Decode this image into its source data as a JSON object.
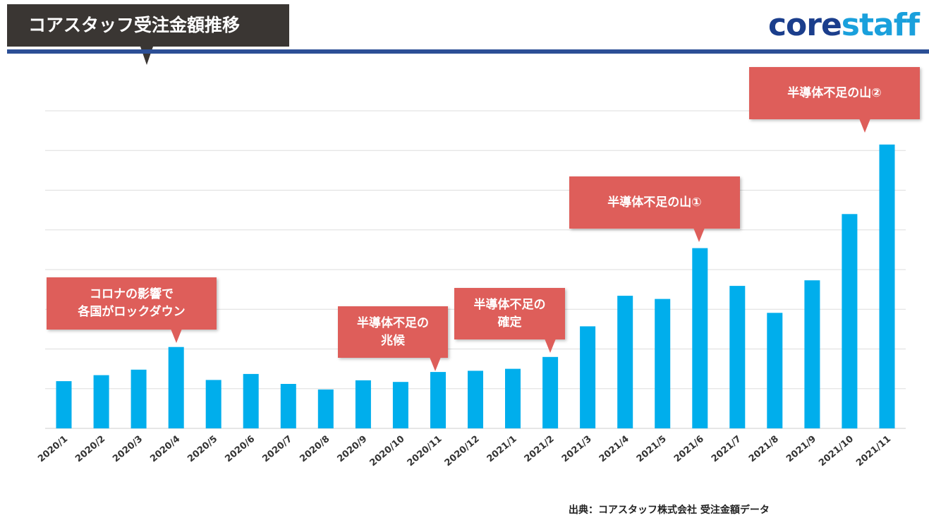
{
  "header": {
    "title": "コアスタッフ受注金額推移",
    "logo_part1": "core",
    "logo_part2": "staff"
  },
  "colors": {
    "bar": "#00aeec",
    "callout": "#de5e5a",
    "title_bg": "#3a3633",
    "rule": "#2c4f96",
    "grid": "#dddddd"
  },
  "chart_data": {
    "type": "bar",
    "title": "コアスタッフ受注金額推移",
    "xlabel": "",
    "ylabel": "",
    "ylim": [
      0,
      8
    ],
    "grid": true,
    "y_tick_labels_visible": false,
    "categories": [
      "2020/1",
      "2020/2",
      "2020/3",
      "2020/4",
      "2020/5",
      "2020/6",
      "2020/7",
      "2020/8",
      "2020/9",
      "2020/10",
      "2020/11",
      "2020/12",
      "2021/1",
      "2021/2",
      "2021/3",
      "2021/4",
      "2021/5",
      "2021/6",
      "2021/7",
      "2021/8",
      "2021/9",
      "2021/10",
      "2021/11"
    ],
    "values": [
      1.19,
      1.34,
      1.48,
      2.05,
      1.22,
      1.37,
      1.12,
      0.98,
      1.21,
      1.17,
      1.42,
      1.45,
      1.5,
      1.8,
      2.57,
      3.34,
      3.26,
      4.54,
      3.59,
      2.91,
      3.73,
      5.4,
      7.15
    ],
    "annotations": [
      {
        "category": "2020/4",
        "lines": [
          "コロナの影響で",
          "各国がロックダウン"
        ]
      },
      {
        "category": "2020/11",
        "lines": [
          "半導体不足の",
          "兆候"
        ]
      },
      {
        "category": "2021/2",
        "lines": [
          "半導体不足の",
          "確定"
        ]
      },
      {
        "category": "2021/6",
        "lines": [
          "半導体不足の山①"
        ]
      },
      {
        "category": "2021/11",
        "lines": [
          "半導体不足の山②"
        ]
      }
    ]
  },
  "footer": {
    "source": "出典：コアスタッフ株式会社 受注金額データ"
  }
}
